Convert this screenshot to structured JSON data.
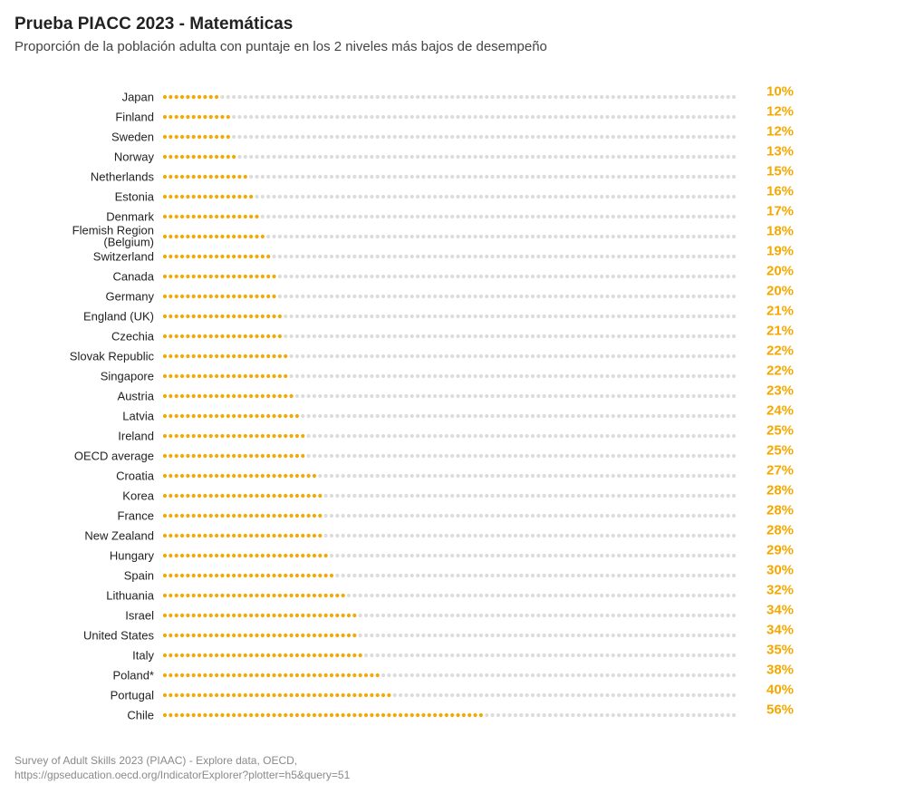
{
  "header": {
    "title": "Prueba PIACC 2023 - Matemáticas",
    "subtitle": "Proporción de la población adulta con puntaje en los 2 niveles más bajos de desempeño"
  },
  "colors": {
    "filled_dot": "#f5a800",
    "empty_dot": "#dcdcdc",
    "value_label": "#f5a800",
    "category_label": "#222222"
  },
  "chart_data": {
    "type": "bar",
    "style": "dot-bar",
    "title": "Prueba PIACC 2023 - Matemáticas",
    "subtitle": "Proporción de la población adulta con puntaje en los 2 niveles más bajos de desempeño",
    "xlabel": "",
    "ylabel": "",
    "xlim": [
      0,
      100
    ],
    "unit": "%",
    "categories": [
      [
        "Japan"
      ],
      [
        "Finland"
      ],
      [
        "Sweden"
      ],
      [
        "Norway"
      ],
      [
        "Netherlands"
      ],
      [
        "Estonia"
      ],
      [
        "Denmark"
      ],
      [
        "Flemish Region",
        "(Belgium)"
      ],
      [
        "Switzerland"
      ],
      [
        "Canada"
      ],
      [
        "Germany"
      ],
      [
        "England (UK)"
      ],
      [
        "Czechia"
      ],
      [
        "Slovak Republic"
      ],
      [
        "Singapore"
      ],
      [
        "Austria"
      ],
      [
        "Latvia"
      ],
      [
        "Ireland"
      ],
      [
        "OECD average"
      ],
      [
        "Croatia"
      ],
      [
        "Korea"
      ],
      [
        "France"
      ],
      [
        "New Zealand"
      ],
      [
        "Hungary"
      ],
      [
        "Spain"
      ],
      [
        "Lithuania"
      ],
      [
        "Israel"
      ],
      [
        "United States"
      ],
      [
        "Italy"
      ],
      [
        "Poland*"
      ],
      [
        "Portugal"
      ],
      [
        "Chile"
      ]
    ],
    "values": [
      10,
      12,
      12,
      13,
      15,
      16,
      17,
      18,
      19,
      20,
      20,
      21,
      21,
      22,
      22,
      23,
      24,
      25,
      25,
      27,
      28,
      28,
      28,
      29,
      30,
      32,
      34,
      34,
      35,
      38,
      40,
      56
    ],
    "value_labels": [
      "10%",
      "12%",
      "12%",
      "13%",
      "15%",
      "16%",
      "17%",
      "18%",
      "19%",
      "20%",
      "20%",
      "21%",
      "21%",
      "22%",
      "22%",
      "23%",
      "24%",
      "25%",
      "25%",
      "27%",
      "28%",
      "28%",
      "28%",
      "29%",
      "30%",
      "32%",
      "34%",
      "34%",
      "35%",
      "38%",
      "40%",
      "56%"
    ]
  },
  "footer": {
    "source_line1": "Survey of Adult Skills 2023 (PIAAC) - Explore data, OECD,",
    "source_line2": "https://gpseducation.oecd.org/IndicatorExplorer?plotter=h5&query=51"
  }
}
